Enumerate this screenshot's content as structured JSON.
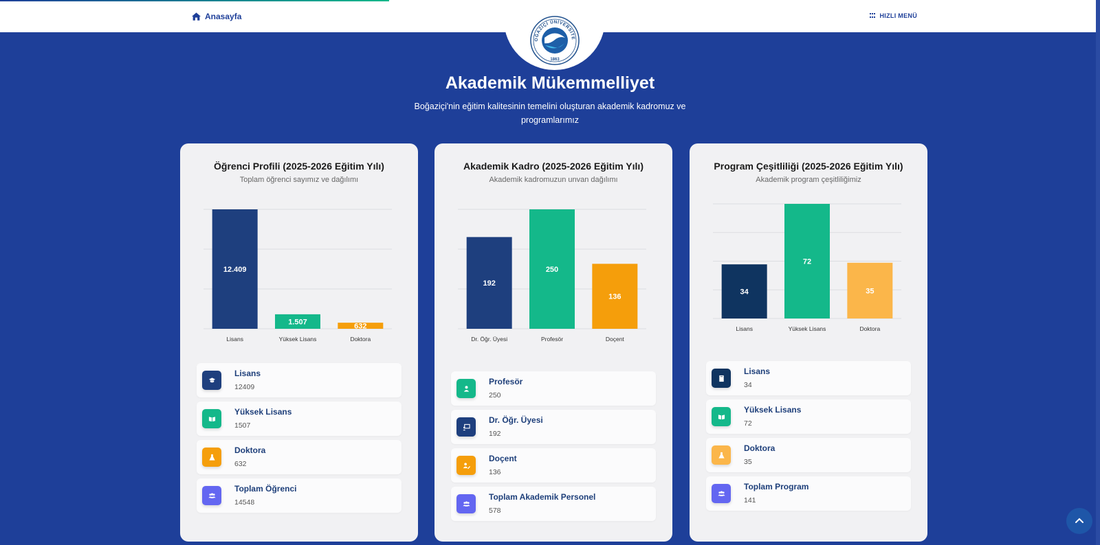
{
  "nav": {
    "home_label": "Anasayfa",
    "quick_menu_label": "HIZLI MENÜ"
  },
  "logo": {
    "top_text": "BOĞAZİÇİ ÜNİVERSİTESİ",
    "year": "1863"
  },
  "header": {
    "title": "Akademik Mükemmelliyet",
    "subtitle": "Boğaziçi'nin eğitim kalitesinin temelini oluşturan akademik kadromuz ve programlarımız"
  },
  "colors": {
    "background": "#1e3f99",
    "navy": "#1e3f7e",
    "green": "#14b88a",
    "orange": "#f59e0b",
    "purple": "#6366f1",
    "dark_navy": "#0f3460",
    "light_orange": "#fbb64a"
  },
  "cards": [
    {
      "title": "Öğrenci Profili (2025-2026 Eğitim Yılı)",
      "subtitle": "Toplam öğrenci sayımız ve dağılımı",
      "items": [
        {
          "label": "Lisans",
          "value": "12409",
          "icon": "graduation-cap-icon",
          "color": "#1e3f7e"
        },
        {
          "label": "Yüksek Lisans",
          "value": "1507",
          "icon": "book-open-icon",
          "color": "#14b88a"
        },
        {
          "label": "Doktora",
          "value": "632",
          "icon": "flask-icon",
          "color": "#f59e0b"
        },
        {
          "label": "Toplam Öğrenci",
          "value": "14548",
          "icon": "users-icon",
          "color": "#6366f1"
        }
      ]
    },
    {
      "title": "Akademik Kadro (2025-2026 Eğitim Yılı)",
      "subtitle": "Akademik kadromuzun unvan dağılımı",
      "items": [
        {
          "label": "Profesör",
          "value": "250",
          "icon": "user-icon",
          "color": "#14b88a"
        },
        {
          "label": "Dr. Öğr. Üyesi",
          "value": "192",
          "icon": "chalkboard-teacher-icon",
          "color": "#1e3f7e"
        },
        {
          "label": "Doçent",
          "value": "136",
          "icon": "user-edit-icon",
          "color": "#f59e0b"
        },
        {
          "label": "Toplam Akademik Personel",
          "value": "578",
          "icon": "users-icon",
          "color": "#6366f1"
        }
      ]
    },
    {
      "title": "Program Çeşitliliği (2025-2026 Eğitim Yılı)",
      "subtitle": "Akademik program çeşitliliğimiz",
      "items": [
        {
          "label": "Lisans",
          "value": "34",
          "icon": "book-icon",
          "color": "#0f3460"
        },
        {
          "label": "Yüksek Lisans",
          "value": "72",
          "icon": "book-open-icon",
          "color": "#14b88a"
        },
        {
          "label": "Doktora",
          "value": "35",
          "icon": "flask-icon",
          "color": "#fbb64a"
        },
        {
          "label": "Toplam Program",
          "value": "141",
          "icon": "users-icon",
          "color": "#6366f1"
        }
      ]
    }
  ],
  "chart_data": [
    {
      "type": "bar",
      "categories": [
        "Lisans",
        "Yüksek Lisans",
        "Doktora"
      ],
      "values": [
        12409,
        1507,
        632
      ],
      "value_labels": [
        "12.409",
        "1.507",
        "632"
      ],
      "colors": [
        "#1e3f7e",
        "#14b88a",
        "#f59e0b"
      ],
      "ylim": [
        0,
        12409
      ],
      "grid": true
    },
    {
      "type": "bar",
      "categories": [
        "Dr. Öğr. Üyesi",
        "Profesör",
        "Doçent"
      ],
      "values": [
        192,
        250,
        136
      ],
      "value_labels": [
        "192",
        "250",
        "136"
      ],
      "colors": [
        "#1e3f7e",
        "#14b88a",
        "#f59e0b"
      ],
      "ylim": [
        0,
        250
      ],
      "grid": true
    },
    {
      "type": "bar",
      "categories": [
        "Lisans",
        "Yüksek Lisans",
        "Doktora"
      ],
      "values": [
        34,
        72,
        35
      ],
      "value_labels": [
        "34",
        "72",
        "35"
      ],
      "colors": [
        "#0f3460",
        "#14b88a",
        "#fbb64a"
      ],
      "ylim": [
        0,
        72
      ],
      "grid": true
    }
  ]
}
